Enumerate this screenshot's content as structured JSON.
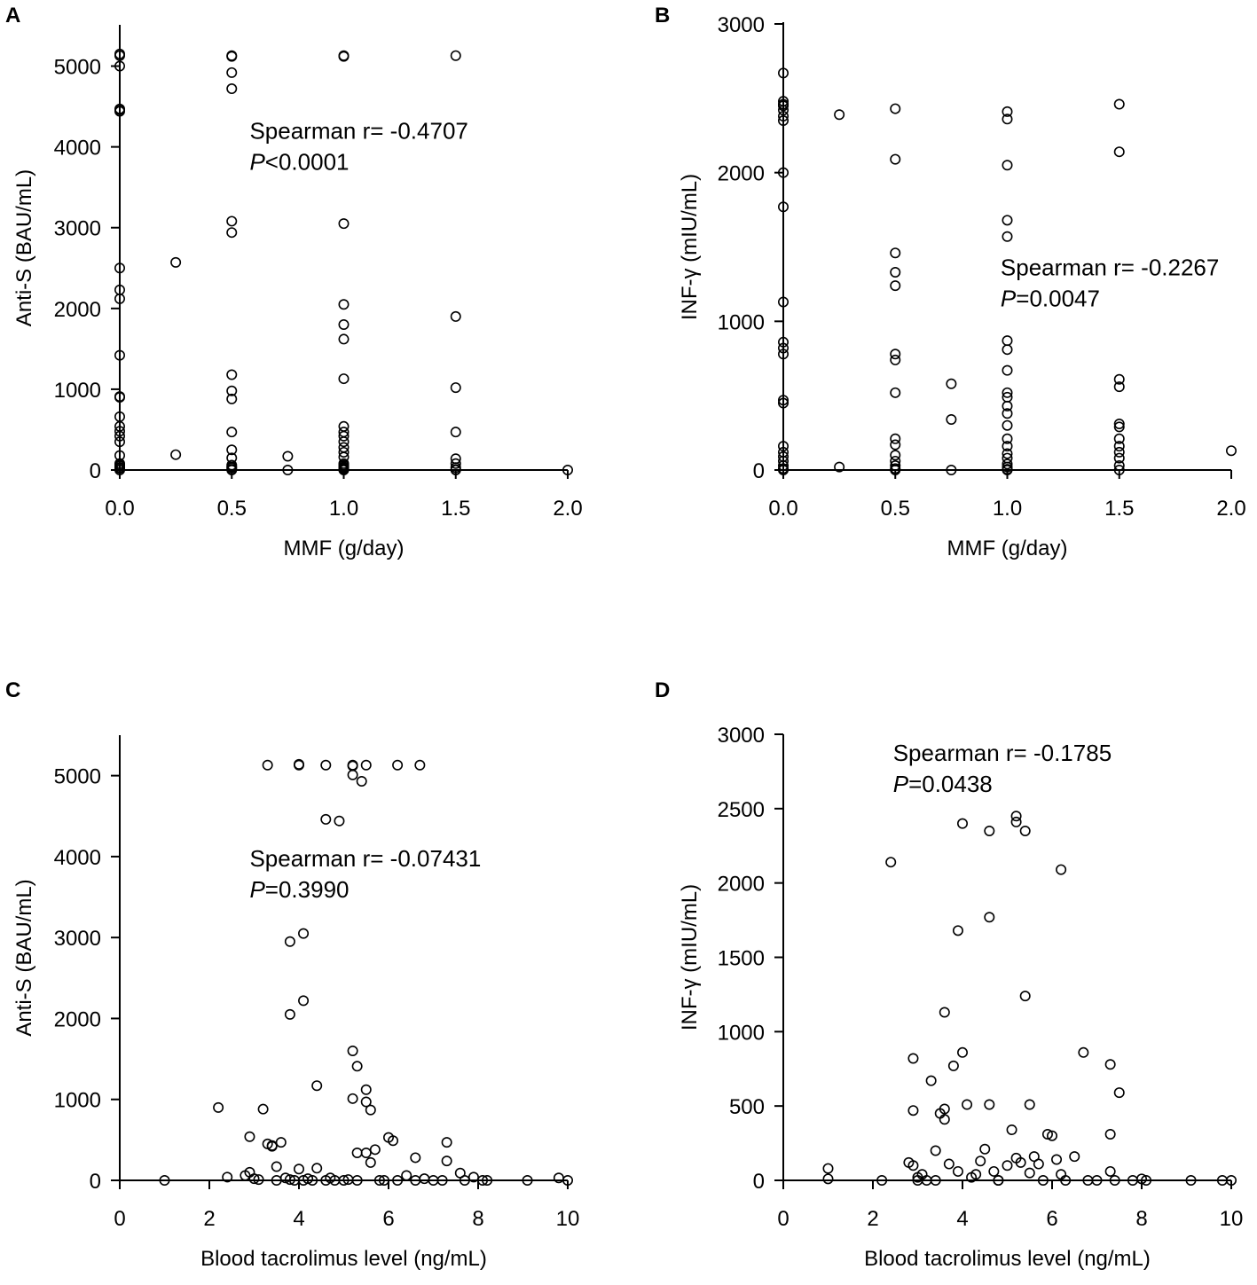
{
  "chart_data": [
    {
      "panel": "A",
      "type": "scatter",
      "xlabel": "MMF (g/day)",
      "ylabel": "Anti-S (BAU/mL)",
      "xlim": [
        0,
        2
      ],
      "ylim": [
        0,
        5500
      ],
      "xticks": [
        0,
        0.5,
        1,
        1.5,
        2
      ],
      "xtick_labels": [
        "0.0",
        "0.5",
        "1.0",
        "1.5",
        "2.0"
      ],
      "yticks": [
        0,
        1000,
        2000,
        3000,
        4000,
        5000
      ],
      "ytick_labels": [
        "0",
        "1000",
        "2000",
        "3000",
        "4000",
        "5000"
      ],
      "annotation": {
        "stat": "Spearman r= -0.4707",
        "p_italic": "P",
        "p_rest": "<0.0001",
        "pos": [
          0.58,
          4100
        ]
      },
      "x": [
        0,
        0,
        0,
        0,
        0,
        0,
        0,
        0,
        0,
        0,
        0,
        0,
        0,
        0,
        0,
        0,
        0,
        0,
        0,
        0,
        0,
        0,
        0,
        0,
        0.25,
        0.25,
        0.5,
        0.5,
        0.5,
        0.5,
        0.5,
        0.5,
        0.5,
        0.5,
        0.5,
        0.5,
        0.5,
        0.5,
        0.5,
        0.5,
        0.5,
        0.5,
        0.5,
        0.75,
        0.75,
        1,
        1,
        1,
        1,
        1,
        1,
        1,
        1,
        1,
        1,
        1,
        1,
        1,
        1,
        1,
        1,
        1,
        1,
        1,
        1,
        1,
        1,
        1.5,
        1.5,
        1.5,
        1.5,
        1.5,
        1.5,
        1.5,
        1.5,
        1.5,
        2
      ],
      "y": [
        5130,
        5000,
        4460,
        4440,
        2500,
        2230,
        2120,
        1420,
        910,
        900,
        660,
        540,
        480,
        420,
        350,
        180,
        80,
        50,
        20,
        0,
        5150,
        4470,
        30,
        60,
        2570,
        190,
        5130,
        5120,
        4920,
        4720,
        3080,
        2940,
        1180,
        980,
        880,
        470,
        250,
        150,
        60,
        30,
        10,
        0,
        40,
        170,
        0,
        5130,
        5120,
        3050,
        2050,
        1800,
        1620,
        1130,
        540,
        470,
        420,
        350,
        280,
        220,
        160,
        80,
        60,
        30,
        10,
        0,
        20,
        5,
        40,
        5130,
        1900,
        1020,
        470,
        140,
        80,
        30,
        5,
        0,
        0
      ]
    },
    {
      "panel": "B",
      "type": "scatter",
      "xlabel": "MMF (g/day)",
      "ylabel": "INF-γ (mIU/mL)",
      "xlim": [
        0,
        2
      ],
      "ylim": [
        0,
        3000
      ],
      "xticks": [
        0,
        0.5,
        1,
        1.5,
        2
      ],
      "xtick_labels": [
        "0.0",
        "0.5",
        "1.0",
        "1.5",
        "2.0"
      ],
      "yticks": [
        0,
        1000,
        2000,
        3000
      ],
      "ytick_labels": [
        "0",
        "1000",
        "2000",
        "3000"
      ],
      "annotation": {
        "stat": "Spearman r= -0.2267",
        "p_italic": "P",
        "p_rest": "=0.0047",
        "pos": [
          0.97,
          1310
        ]
      },
      "x": [
        0,
        0,
        0,
        0,
        0,
        0,
        0,
        0,
        0,
        0,
        0,
        0,
        0,
        0,
        0,
        0,
        0,
        0,
        0,
        0,
        0,
        0,
        0.25,
        0.25,
        0.5,
        0.5,
        0.5,
        0.5,
        0.5,
        0.5,
        0.5,
        0.5,
        0.5,
        0.5,
        0.5,
        0.5,
        0.5,
        0.5,
        0.5,
        0.75,
        0.75,
        0.75,
        1,
        1,
        1,
        1,
        1,
        1,
        1,
        1,
        1,
        1,
        1,
        1,
        1,
        1,
        1,
        1,
        1,
        1,
        1,
        1,
        1,
        1.5,
        1.5,
        1.5,
        1.5,
        1.5,
        1.5,
        1.5,
        1.5,
        1.5,
        1.5,
        1.5,
        1.5,
        2
      ],
      "y": [
        2670,
        2480,
        2450,
        2420,
        2380,
        2350,
        2000,
        1770,
        1130,
        860,
        820,
        780,
        470,
        450,
        160,
        120,
        90,
        60,
        30,
        10,
        0,
        2460,
        2390,
        20,
        2430,
        2090,
        1460,
        1330,
        1240,
        780,
        740,
        520,
        210,
        170,
        100,
        60,
        30,
        10,
        0,
        580,
        340,
        0,
        2410,
        2360,
        2050,
        1680,
        1570,
        870,
        810,
        670,
        520,
        490,
        430,
        380,
        300,
        210,
        160,
        110,
        80,
        40,
        20,
        5,
        0,
        2460,
        2140,
        610,
        560,
        310,
        290,
        210,
        160,
        120,
        80,
        30,
        0,
        130
      ]
    },
    {
      "panel": "C",
      "type": "scatter",
      "xlabel": "Blood tacrolimus level (ng/mL)",
      "ylabel": "Anti-S (BAU/mL)",
      "xlim": [
        0,
        10
      ],
      "ylim": [
        0,
        5500
      ],
      "xticks": [
        0,
        2,
        4,
        6,
        8,
        10
      ],
      "xtick_labels": [
        "0",
        "2",
        "4",
        "6",
        "8",
        "10"
      ],
      "yticks": [
        0,
        1000,
        2000,
        3000,
        4000,
        5000
      ],
      "ytick_labels": [
        "0",
        "1000",
        "2000",
        "3000",
        "4000",
        "5000"
      ],
      "annotation": {
        "stat": "Spearman r= -0.07431",
        "p_italic": "P",
        "p_rest": "=0.3990",
        "pos": [
          2.9,
          3880
        ]
      },
      "x": [
        3.3,
        4.0,
        4.0,
        4.6,
        5.2,
        5.2,
        5.5,
        6.2,
        6.7,
        5.2,
        5.4,
        4.6,
        4.9,
        3.8,
        4.1,
        3.8,
        4.1,
        5.2,
        5.3,
        4.4,
        5.5,
        5.2,
        5.5,
        5.6,
        2.2,
        3.2,
        2.9,
        3.3,
        3.4,
        3.6,
        3.4,
        6.0,
        6.1,
        7.3,
        7.3,
        5.7,
        5.6,
        6.6,
        5.3,
        5.5,
        4.4,
        4.0,
        3.5,
        1.0,
        2.4,
        2.8,
        2.9,
        3.0,
        3.1,
        3.5,
        3.7,
        3.9,
        4.1,
        4.3,
        4.6,
        4.8,
        5.0,
        5.3,
        5.8,
        6.2,
        6.4,
        6.6,
        7.0,
        7.2,
        7.6,
        7.9,
        8.1,
        9.1,
        9.8,
        10.0,
        3.8,
        4.2,
        4.7,
        5.1,
        5.9,
        6.8,
        7.7,
        8.2
      ],
      "y": [
        5130,
        5130,
        5140,
        5130,
        5130,
        5120,
        5130,
        5130,
        5130,
        5010,
        4930,
        4460,
        4440,
        2950,
        3050,
        2050,
        2220,
        1600,
        1410,
        1170,
        1120,
        1010,
        970,
        870,
        900,
        880,
        540,
        450,
        420,
        470,
        430,
        530,
        490,
        470,
        240,
        380,
        220,
        280,
        340,
        340,
        150,
        140,
        170,
        0,
        40,
        60,
        100,
        20,
        10,
        0,
        30,
        0,
        0,
        0,
        0,
        0,
        0,
        0,
        0,
        0,
        60,
        0,
        0,
        0,
        90,
        40,
        0,
        0,
        30,
        0,
        10,
        20,
        30,
        10,
        0,
        20,
        0,
        0
      ]
    },
    {
      "panel": "D",
      "type": "scatter",
      "xlabel": "Blood tacrolimus level (ng/mL)",
      "ylabel": "INF-γ (mIU/mL)",
      "xlim": [
        0,
        10
      ],
      "ylim": [
        0,
        3000
      ],
      "xticks": [
        0,
        2,
        4,
        6,
        8,
        10
      ],
      "xtick_labels": [
        "0",
        "2",
        "4",
        "6",
        "8",
        "10"
      ],
      "yticks": [
        0,
        500,
        1000,
        1500,
        2000,
        2500,
        3000
      ],
      "ytick_labels": [
        "0",
        "500",
        "1000",
        "1500",
        "2000",
        "2500",
        "3000"
      ],
      "annotation": {
        "stat": "Spearman r= -0.1785",
        "p_italic": "P",
        "p_rest": "=0.0438",
        "pos": [
          2.45,
          2820
        ]
      },
      "x": [
        5.2,
        5.2,
        4.0,
        4.6,
        5.4,
        2.4,
        6.2,
        4.6,
        3.9,
        5.4,
        3.6,
        6.7,
        7.3,
        4.0,
        2.9,
        3.8,
        3.3,
        7.5,
        4.1,
        3.6,
        4.6,
        5.5,
        2.9,
        3.5,
        3.6,
        7.3,
        5.1,
        6.0,
        5.9,
        1.0,
        1.0,
        2.2,
        2.8,
        2.9,
        3.0,
        3.1,
        3.2,
        3.4,
        3.7,
        3.9,
        4.2,
        4.4,
        4.5,
        4.8,
        5.0,
        5.3,
        5.6,
        5.8,
        6.1,
        6.3,
        6.5,
        6.8,
        7.0,
        7.4,
        7.8,
        8.0,
        8.1,
        9.1,
        9.8,
        10.0,
        3.4,
        4.3,
        4.7,
        5.2,
        5.7,
        6.2,
        7.3,
        3.0,
        4.8,
        5.5
      ],
      "y": [
        2450,
        2410,
        2400,
        2350,
        2350,
        2140,
        2090,
        1770,
        1680,
        1240,
        1130,
        860,
        780,
        860,
        820,
        770,
        670,
        590,
        510,
        480,
        510,
        510,
        470,
        450,
        410,
        310,
        340,
        300,
        310,
        80,
        10,
        0,
        120,
        100,
        0,
        40,
        0,
        200,
        110,
        60,
        20,
        130,
        210,
        0,
        100,
        120,
        160,
        0,
        140,
        0,
        160,
        0,
        0,
        0,
        0,
        10,
        0,
        0,
        0,
        0,
        0,
        40,
        60,
        150,
        110,
        40,
        60,
        20,
        0,
        50
      ]
    }
  ]
}
